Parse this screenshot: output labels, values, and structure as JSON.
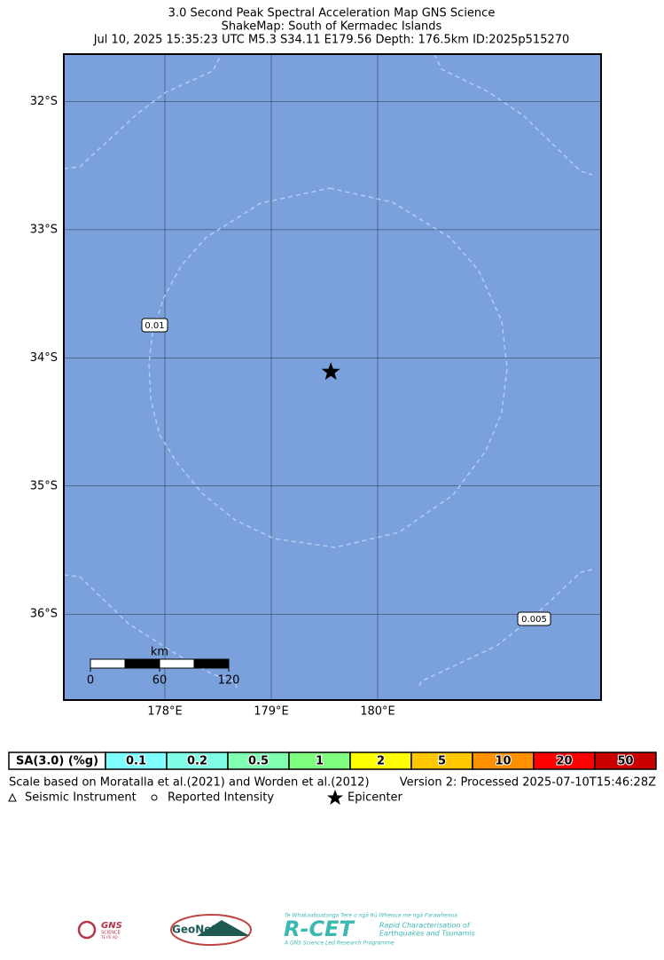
{
  "header": {
    "lines": [
      "3.0 Second Peak Spectral Acceleration Map GNS Science",
      "ShakeMap: South of Kermadec Islands",
      "Jul 10, 2025 15:35:23 UTC M5.3 S34.11 E179.56 Depth: 176.5km ID:2025p515270"
    ]
  },
  "map": {
    "lon_range": [
      177.05,
      182.1
    ],
    "lat_range": [
      -31.63,
      -36.67
    ],
    "lat_ticks": [
      {
        "value": -32,
        "label": "32°S"
      },
      {
        "value": -33,
        "label": "33°S"
      },
      {
        "value": -34,
        "label": "34°S"
      },
      {
        "value": -35,
        "label": "35°S"
      },
      {
        "value": -36,
        "label": "36°S"
      }
    ],
    "lon_ticks": [
      {
        "value": 178,
        "label": "178°E"
      },
      {
        "value": 179,
        "label": "179°E"
      },
      {
        "value": 180,
        "label": "180°E"
      }
    ],
    "epicenter": {
      "lon": 179.56,
      "lat": -34.11
    },
    "contour_labels": [
      "0.01",
      "0.005"
    ],
    "scale_bar": {
      "unit": "km",
      "ticks": [
        0,
        60,
        120
      ]
    }
  },
  "legend": {
    "title": "SA(3.0) (%g)",
    "bins": [
      {
        "label": "0.1",
        "color": "#80ffff"
      },
      {
        "label": "0.2",
        "color": "#80ffe6"
      },
      {
        "label": "0.5",
        "color": "#80ffb3"
      },
      {
        "label": "1",
        "color": "#80ff80"
      },
      {
        "label": "2",
        "color": "#ffff00"
      },
      {
        "label": "5",
        "color": "#ffc800"
      },
      {
        "label": "10",
        "color": "#ff9100"
      },
      {
        "label": "20",
        "color": "#ff0000"
      },
      {
        "label": "50",
        "color": "#c80000"
      }
    ]
  },
  "footer": {
    "reference": "Scale based on Moratalla et al.(2021) and Worden et al.(2012)",
    "version": "Version 2: Processed 2025-07-10T15:46:28Z",
    "symbols": [
      "Seismic Instrument",
      "Reported Intensity",
      "Epicenter"
    ]
  },
  "logos": {
    "gns": "GNS",
    "gns_sub": "SCIENCE",
    "gns_maori": "TE PŪ AO",
    "geonet": "GeoNet",
    "rcet": "R-CET",
    "rcet_maori": "Te Whakaahuatanga Tere o ngā Rū Whenua me ngā Parawhenua",
    "rcet_line1": "Rapid Characterisation of",
    "rcet_line2": "Earthquakes and Tsunamis",
    "rcet_footer": "A GNS Science Led Research Programme"
  }
}
